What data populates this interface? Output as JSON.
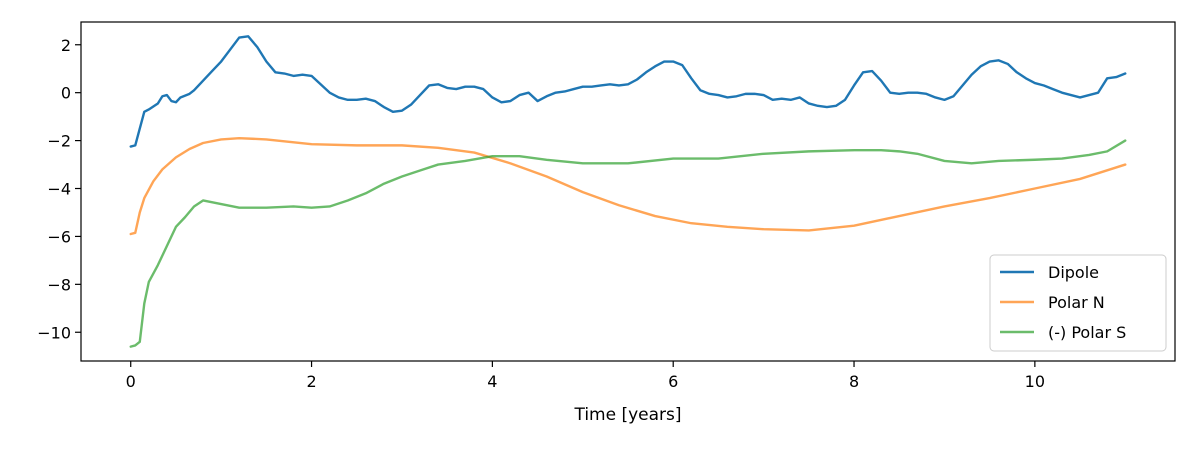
{
  "chart_data": {
    "type": "line",
    "title": "",
    "xlabel": "Time [years]",
    "ylabel": "",
    "xlim": [
      -0.55,
      11.55
    ],
    "ylim": [
      -11.2,
      2.95
    ],
    "xticks": [
      0,
      2,
      4,
      6,
      8,
      10
    ],
    "xtick_labels": [
      "0",
      "2",
      "4",
      "6",
      "8",
      "10"
    ],
    "yticks": [
      2,
      0,
      -2,
      -4,
      -6,
      -8,
      -10
    ],
    "ytick_labels": [
      "2",
      "0",
      "−2",
      "−4",
      "−6",
      "−8",
      "−10"
    ],
    "grid": false,
    "legend_position": "lower-right",
    "series": [
      {
        "name": "Dipole",
        "color": "#1f77b4",
        "x": [
          0,
          0.05,
          0.1,
          0.15,
          0.2,
          0.3,
          0.35,
          0.4,
          0.45,
          0.5,
          0.55,
          0.65,
          0.7,
          0.8,
          0.9,
          1.0,
          1.1,
          1.2,
          1.3,
          1.4,
          1.5,
          1.6,
          1.7,
          1.8,
          1.9,
          2.0,
          2.1,
          2.2,
          2.3,
          2.4,
          2.5,
          2.6,
          2.7,
          2.8,
          2.9,
          3.0,
          3.1,
          3.2,
          3.3,
          3.4,
          3.5,
          3.6,
          3.7,
          3.8,
          3.9,
          4.0,
          4.1,
          4.2,
          4.3,
          4.4,
          4.5,
          4.6,
          4.7,
          4.8,
          4.9,
          5.0,
          5.1,
          5.2,
          5.3,
          5.4,
          5.5,
          5.6,
          5.7,
          5.8,
          5.9,
          6.0,
          6.1,
          6.2,
          6.3,
          6.4,
          6.5,
          6.6,
          6.7,
          6.8,
          6.9,
          7.0,
          7.1,
          7.2,
          7.3,
          7.4,
          7.5,
          7.6,
          7.7,
          7.8,
          7.9,
          8.0,
          8.1,
          8.2,
          8.3,
          8.4,
          8.5,
          8.6,
          8.7,
          8.8,
          8.9,
          9.0,
          9.1,
          9.2,
          9.3,
          9.4,
          9.5,
          9.6,
          9.7,
          9.8,
          9.9,
          10.0,
          10.1,
          10.2,
          10.3,
          10.4,
          10.5,
          10.6,
          10.7,
          10.8,
          10.9,
          11.0
        ],
        "y": [
          -2.25,
          -2.2,
          -1.5,
          -0.8,
          -0.7,
          -0.45,
          -0.15,
          -0.1,
          -0.35,
          -0.4,
          -0.2,
          -0.05,
          0.1,
          0.5,
          0.9,
          1.3,
          1.8,
          2.3,
          2.35,
          1.9,
          1.3,
          0.85,
          0.8,
          0.7,
          0.75,
          0.7,
          0.35,
          0.0,
          -0.2,
          -0.3,
          -0.3,
          -0.25,
          -0.35,
          -0.6,
          -0.8,
          -0.75,
          -0.5,
          -0.1,
          0.3,
          0.35,
          0.2,
          0.15,
          0.25,
          0.25,
          0.15,
          -0.2,
          -0.4,
          -0.35,
          -0.1,
          0.0,
          -0.35,
          -0.15,
          0.0,
          0.05,
          0.15,
          0.25,
          0.25,
          0.3,
          0.35,
          0.3,
          0.35,
          0.55,
          0.85,
          1.1,
          1.3,
          1.3,
          1.15,
          0.6,
          0.1,
          -0.05,
          -0.1,
          -0.2,
          -0.15,
          -0.05,
          -0.05,
          -0.1,
          -0.3,
          -0.25,
          -0.3,
          -0.2,
          -0.45,
          -0.55,
          -0.6,
          -0.55,
          -0.3,
          0.3,
          0.85,
          0.9,
          0.5,
          0.0,
          -0.05,
          0.0,
          0.0,
          -0.05,
          -0.2,
          -0.3,
          -0.15,
          0.3,
          0.75,
          1.1,
          1.3,
          1.35,
          1.2,
          0.85,
          0.6,
          0.4,
          0.3,
          0.15,
          0.0,
          -0.1,
          -0.2,
          -0.1,
          0.0,
          0.6,
          0.65,
          0.8
        ]
      },
      {
        "name": "Polar N",
        "color": "#ff7f0e",
        "x": [
          0,
          0.05,
          0.1,
          0.15,
          0.25,
          0.35,
          0.5,
          0.65,
          0.8,
          1.0,
          1.2,
          1.5,
          2.0,
          2.5,
          3.0,
          3.4,
          3.8,
          4.2,
          4.6,
          5.0,
          5.4,
          5.8,
          6.2,
          6.6,
          7.0,
          7.5,
          8.0,
          8.5,
          9.0,
          9.5,
          10.0,
          10.5,
          11.0
        ],
        "y": [
          -5.9,
          -5.85,
          -5.0,
          -4.4,
          -3.7,
          -3.2,
          -2.7,
          -2.35,
          -2.1,
          -1.95,
          -1.9,
          -1.95,
          -2.15,
          -2.2,
          -2.2,
          -2.3,
          -2.5,
          -2.95,
          -3.5,
          -4.15,
          -4.7,
          -5.15,
          -5.45,
          -5.6,
          -5.7,
          -5.75,
          -5.55,
          -5.15,
          -4.75,
          -4.4,
          -4.0,
          -3.6,
          -3.0
        ]
      },
      {
        "name": "(-) Polar S",
        "color": "#2ca02c",
        "x": [
          0,
          0.05,
          0.1,
          0.15,
          0.2,
          0.3,
          0.4,
          0.5,
          0.6,
          0.7,
          0.8,
          1.0,
          1.2,
          1.5,
          1.8,
          2.0,
          2.2,
          2.4,
          2.6,
          2.8,
          3.0,
          3.2,
          3.4,
          3.7,
          4.0,
          4.3,
          4.6,
          5.0,
          5.5,
          6.0,
          6.5,
          7.0,
          7.5,
          8.0,
          8.3,
          8.5,
          8.7,
          9.0,
          9.3,
          9.6,
          10.0,
          10.3,
          10.6,
          10.8,
          11.0
        ],
        "y": [
          -10.6,
          -10.55,
          -10.4,
          -8.8,
          -7.9,
          -7.2,
          -6.4,
          -5.6,
          -5.2,
          -4.75,
          -4.5,
          -4.65,
          -4.8,
          -4.8,
          -4.75,
          -4.8,
          -4.75,
          -4.5,
          -4.2,
          -3.8,
          -3.5,
          -3.25,
          -3.0,
          -2.85,
          -2.65,
          -2.65,
          -2.8,
          -2.95,
          -2.95,
          -2.75,
          -2.75,
          -2.55,
          -2.45,
          -2.4,
          -2.4,
          -2.45,
          -2.55,
          -2.85,
          -2.95,
          -2.85,
          -2.8,
          -2.75,
          -2.6,
          -2.45,
          -2.0
        ]
      }
    ]
  }
}
